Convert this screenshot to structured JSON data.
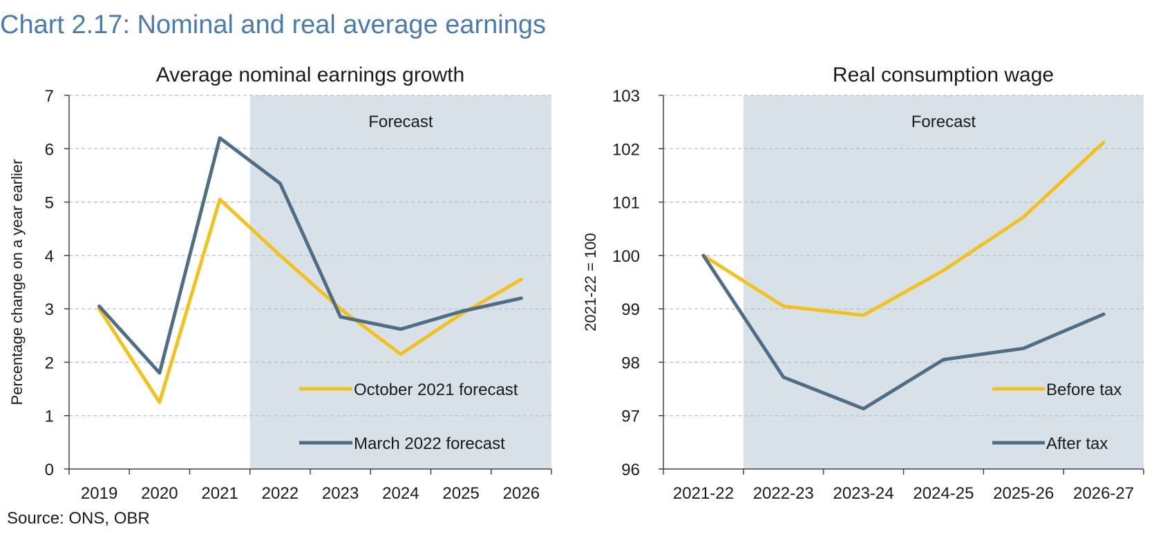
{
  "figure": {
    "title": "Chart 2.17: Nominal and real average earnings",
    "source": "Source: ONS, OBR"
  },
  "colors": {
    "title": "#4a7bb0",
    "forecast_shade": "#d9e1e8",
    "grid": "#b9bec4",
    "axis": "#404040",
    "yellow": "#f2c21a",
    "blue": "#4f6e86",
    "text": "#1a1a1a"
  },
  "chart_data": [
    {
      "type": "line",
      "title": "Average nominal earnings growth",
      "xlabel": "",
      "ylabel": "Percentage change on a year earlier",
      "categories": [
        "2019",
        "2020",
        "2021",
        "2022",
        "2023",
        "2024",
        "2025",
        "2026"
      ],
      "ylim": [
        0,
        7
      ],
      "yticks": [
        "0",
        "1",
        "2",
        "3",
        "4",
        "5",
        "6",
        "7"
      ],
      "grid": true,
      "forecast_label": "Forecast",
      "forecast_start_category": "2022",
      "legend_position": "bottom-right",
      "series": [
        {
          "name": "October 2021 forecast",
          "color": "yellow",
          "values": [
            3.0,
            1.25,
            5.05,
            4.0,
            3.0,
            2.15,
            2.9,
            3.55
          ]
        },
        {
          "name": "March 2022 forecast",
          "color": "blue",
          "values": [
            3.05,
            1.8,
            6.2,
            5.35,
            2.85,
            2.62,
            2.95,
            3.2
          ]
        }
      ]
    },
    {
      "type": "line",
      "title": "Real consumption wage",
      "xlabel": "",
      "ylabel": "2021-22 = 100",
      "categories": [
        "2021-22",
        "2022-23",
        "2023-24",
        "2024-25",
        "2025-26",
        "2026-27"
      ],
      "ylim": [
        96,
        103
      ],
      "yticks": [
        "96",
        "97",
        "98",
        "99",
        "100",
        "101",
        "102",
        "103"
      ],
      "grid": true,
      "forecast_label": "Forecast",
      "forecast_start_category": "2022-23",
      "legend_position": "bottom-right",
      "series": [
        {
          "name": "Before tax",
          "color": "yellow",
          "values": [
            100.0,
            99.05,
            98.88,
            99.72,
            100.72,
            102.12
          ]
        },
        {
          "name": "After tax",
          "color": "blue",
          "values": [
            100.0,
            97.72,
            97.13,
            98.05,
            98.26,
            98.9
          ]
        }
      ]
    }
  ]
}
